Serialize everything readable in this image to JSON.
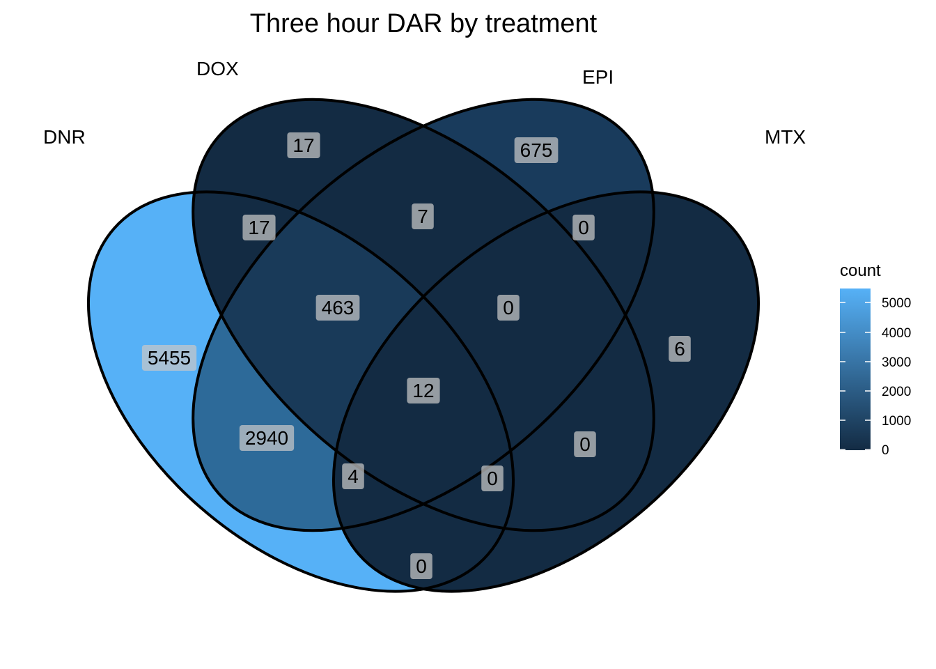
{
  "title": "Three hour DAR by treatment",
  "sets": {
    "dnr": "DNR",
    "dox": "DOX",
    "epi": "EPI",
    "mtx": "MTX"
  },
  "colors": {
    "low": "#132b43",
    "high": "#56b1f7",
    "outline": "#000000",
    "label_box": "#c8c8c8"
  },
  "regions": [
    {
      "id": "dox-only",
      "label": "17",
      "value": 17
    },
    {
      "id": "epi-only",
      "label": "675",
      "value": 675
    },
    {
      "id": "dnr-dox",
      "label": "17",
      "value": 17
    },
    {
      "id": "dox-epi",
      "label": "7",
      "value": 7
    },
    {
      "id": "epi-mtx",
      "label": "0",
      "value": 0
    },
    {
      "id": "dnr-dox-epi",
      "label": "463",
      "value": 463
    },
    {
      "id": "dox-epi-mtx",
      "label": "0",
      "value": 0
    },
    {
      "id": "dnr-only",
      "label": "5455",
      "value": 5455
    },
    {
      "id": "mtx-only",
      "label": "6",
      "value": 6
    },
    {
      "id": "all-four",
      "label": "12",
      "value": 12
    },
    {
      "id": "dnr-epi",
      "label": "2940",
      "value": 2940
    },
    {
      "id": "dox-mtx",
      "label": "0",
      "value": 0
    },
    {
      "id": "dnr-epi-mtx",
      "label": "4",
      "value": 4
    },
    {
      "id": "dnr-dox-mtx",
      "label": "0",
      "value": 0
    },
    {
      "id": "dnr-mtx",
      "label": "0",
      "value": 0
    }
  ],
  "legend": {
    "title": "count",
    "ticks": [
      "5000",
      "4000",
      "3000",
      "2000",
      "1000",
      "0"
    ]
  }
}
